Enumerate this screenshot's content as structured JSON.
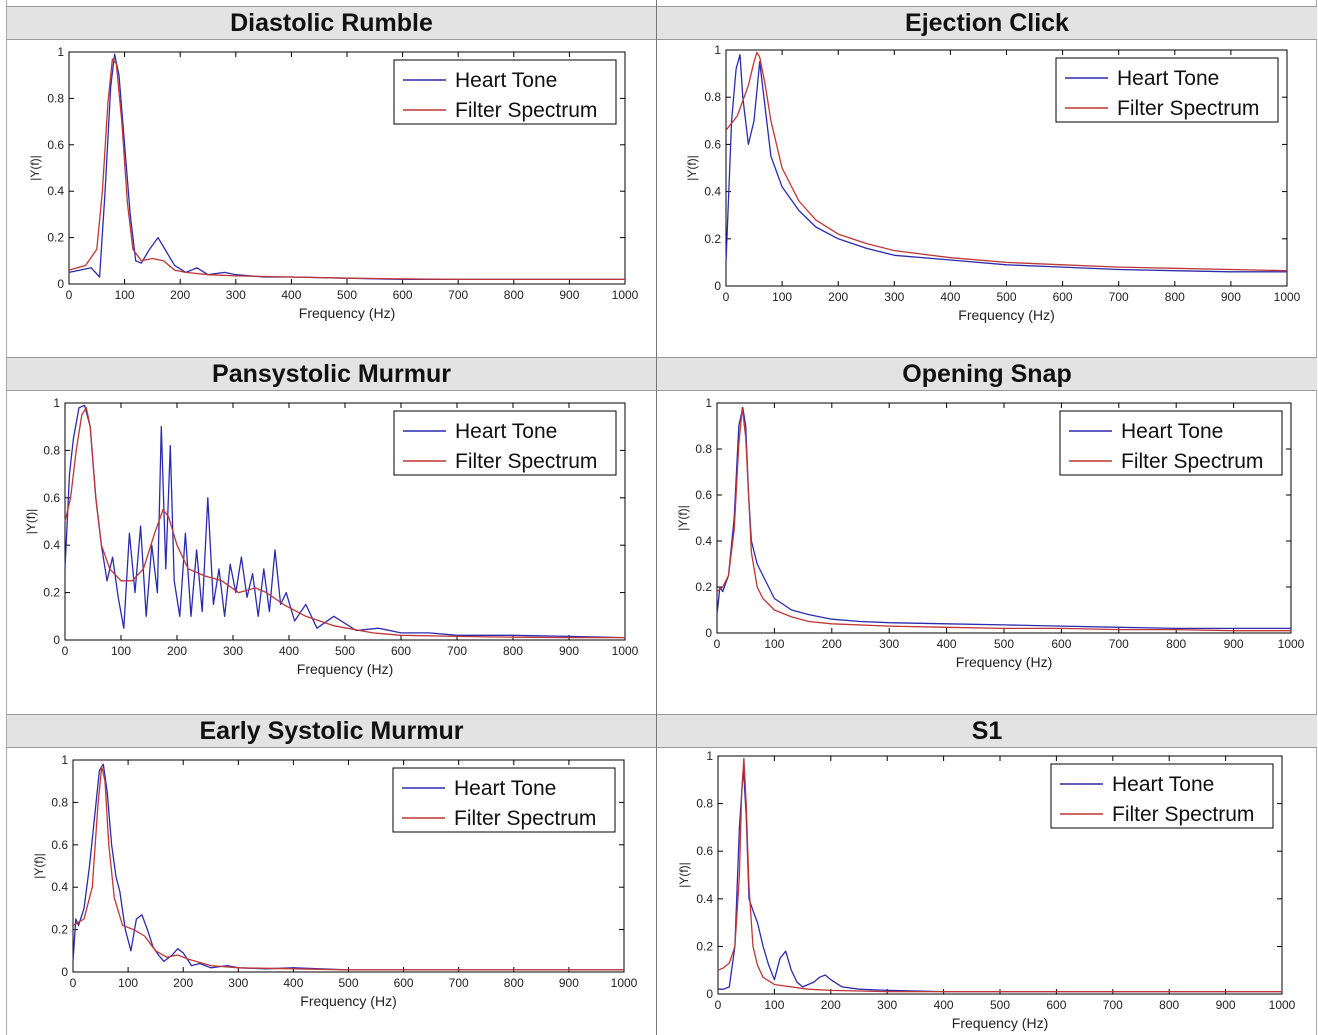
{
  "colors": {
    "heart_tone": "#2b2bb0",
    "filter_spectrum": "#c03535",
    "header_bg": "#e3e3e3"
  },
  "chart_data": [
    {
      "type": "line",
      "title": "Diastolic Rumble",
      "xlabel": "Frequency (Hz)",
      "ylabel": "|Y(f)|",
      "xlim": [
        0,
        1000
      ],
      "ylim": [
        0,
        1
      ],
      "xticks": [
        "0",
        "100",
        "200",
        "300",
        "400",
        "500",
        "600",
        "700",
        "800",
        "900",
        "1000"
      ],
      "yticks": [
        "0",
        "0.2",
        "0.4",
        "0.6",
        "0.8",
        "1"
      ],
      "legend_position": "top-right",
      "series": [
        {
          "name": "Heart Tone",
          "x": [
            0,
            20,
            40,
            55,
            65,
            75,
            82,
            90,
            100,
            110,
            120,
            130,
            145,
            160,
            175,
            190,
            210,
            230,
            250,
            280,
            300,
            350,
            400,
            500,
            600,
            700,
            800,
            900,
            1000
          ],
          "y": [
            0.05,
            0.06,
            0.07,
            0.03,
            0.4,
            0.85,
            0.99,
            0.9,
            0.6,
            0.3,
            0.1,
            0.09,
            0.15,
            0.2,
            0.14,
            0.08,
            0.05,
            0.07,
            0.04,
            0.05,
            0.04,
            0.03,
            0.03,
            0.025,
            0.02,
            0.02,
            0.02,
            0.02,
            0.02
          ]
        },
        {
          "name": "Filter Spectrum",
          "x": [
            0,
            30,
            50,
            60,
            70,
            78,
            85,
            95,
            105,
            115,
            130,
            150,
            170,
            190,
            210,
            250,
            300,
            400,
            500,
            600,
            700,
            800,
            900,
            1000
          ],
          "y": [
            0.06,
            0.08,
            0.15,
            0.4,
            0.78,
            0.97,
            0.95,
            0.7,
            0.35,
            0.15,
            0.1,
            0.11,
            0.1,
            0.06,
            0.05,
            0.04,
            0.035,
            0.03,
            0.025,
            0.022,
            0.02,
            0.02,
            0.02,
            0.02
          ]
        }
      ]
    },
    {
      "type": "line",
      "title": "Ejection Click",
      "xlabel": "Frequency (Hz)",
      "ylabel": "|Y(f)|",
      "xlim": [
        0,
        1000
      ],
      "ylim": [
        0,
        1
      ],
      "xticks": [
        "0",
        "100",
        "200",
        "300",
        "400",
        "500",
        "600",
        "700",
        "800",
        "900",
        "1000"
      ],
      "yticks": [
        "0",
        "0.2",
        "0.4",
        "0.6",
        "0.8",
        "1"
      ],
      "legend_position": "top-right",
      "series": [
        {
          "name": "Heart Tone",
          "x": [
            0,
            5,
            10,
            18,
            25,
            30,
            40,
            50,
            60,
            70,
            80,
            100,
            130,
            160,
            200,
            250,
            300,
            400,
            500,
            600,
            700,
            800,
            900,
            1000
          ],
          "y": [
            0.1,
            0.4,
            0.7,
            0.92,
            0.98,
            0.8,
            0.6,
            0.7,
            0.95,
            0.75,
            0.55,
            0.42,
            0.32,
            0.25,
            0.2,
            0.16,
            0.13,
            0.11,
            0.09,
            0.08,
            0.07,
            0.065,
            0.06,
            0.06
          ]
        },
        {
          "name": "Filter Spectrum",
          "x": [
            0,
            20,
            40,
            50,
            55,
            60,
            70,
            80,
            100,
            130,
            160,
            200,
            250,
            300,
            400,
            500,
            600,
            700,
            800,
            900,
            1000
          ],
          "y": [
            0.66,
            0.72,
            0.85,
            0.95,
            0.99,
            0.97,
            0.85,
            0.7,
            0.5,
            0.36,
            0.28,
            0.22,
            0.18,
            0.15,
            0.12,
            0.1,
            0.09,
            0.08,
            0.075,
            0.07,
            0.065
          ]
        }
      ]
    },
    {
      "type": "line",
      "title": "Pansystolic Murmur",
      "xlabel": "Frequency (Hz)",
      "ylabel": "|Y(f)|",
      "xlim": [
        0,
        1000
      ],
      "ylim": [
        0,
        1
      ],
      "xticks": [
        "0",
        "100",
        "200",
        "300",
        "400",
        "500",
        "600",
        "700",
        "800",
        "900",
        "1000"
      ],
      "yticks": [
        "0",
        "0.2",
        "0.4",
        "0.6",
        "0.8",
        "1"
      ],
      "legend_position": "top-right",
      "series": [
        {
          "name": "Heart Tone",
          "x": [
            0,
            8,
            15,
            25,
            35,
            45,
            55,
            65,
            75,
            85,
            95,
            105,
            115,
            125,
            135,
            145,
            155,
            165,
            172,
            180,
            188,
            195,
            205,
            215,
            225,
            235,
            245,
            255,
            265,
            275,
            285,
            295,
            305,
            315,
            325,
            335,
            345,
            355,
            365,
            375,
            385,
            395,
            410,
            430,
            450,
            480,
            520,
            560,
            600,
            650,
            700,
            800,
            900,
            1000
          ],
          "y": [
            0.3,
            0.7,
            0.85,
            0.98,
            0.99,
            0.9,
            0.6,
            0.4,
            0.25,
            0.35,
            0.18,
            0.05,
            0.45,
            0.2,
            0.48,
            0.1,
            0.4,
            0.2,
            0.9,
            0.3,
            0.82,
            0.25,
            0.1,
            0.45,
            0.1,
            0.38,
            0.12,
            0.6,
            0.15,
            0.3,
            0.1,
            0.32,
            0.2,
            0.35,
            0.18,
            0.28,
            0.1,
            0.3,
            0.12,
            0.38,
            0.15,
            0.2,
            0.08,
            0.15,
            0.05,
            0.1,
            0.04,
            0.05,
            0.03,
            0.03,
            0.02,
            0.02,
            0.015,
            0.01
          ]
        },
        {
          "name": "Filter Spectrum",
          "x": [
            0,
            10,
            20,
            30,
            38,
            45,
            55,
            65,
            80,
            100,
            120,
            140,
            160,
            175,
            185,
            200,
            220,
            250,
            280,
            310,
            340,
            360,
            390,
            430,
            480,
            550,
            600,
            700,
            800,
            900,
            1000
          ],
          "y": [
            0.5,
            0.6,
            0.8,
            0.95,
            0.98,
            0.9,
            0.6,
            0.4,
            0.3,
            0.25,
            0.25,
            0.3,
            0.45,
            0.55,
            0.52,
            0.4,
            0.3,
            0.27,
            0.25,
            0.2,
            0.22,
            0.2,
            0.15,
            0.1,
            0.06,
            0.03,
            0.02,
            0.015,
            0.012,
            0.01,
            0.01
          ]
        }
      ]
    },
    {
      "type": "line",
      "title": "Opening Snap",
      "xlabel": "Frequency (Hz)",
      "ylabel": "|Y(f)|",
      "xlim": [
        0,
        1000
      ],
      "ylim": [
        0,
        1
      ],
      "xticks": [
        "0",
        "100",
        "200",
        "300",
        "400",
        "500",
        "600",
        "700",
        "800",
        "900",
        "1000"
      ],
      "yticks": [
        "0",
        "0.2",
        "0.4",
        "0.6",
        "0.8",
        "1"
      ],
      "legend_position": "top-right",
      "series": [
        {
          "name": "Heart Tone",
          "x": [
            0,
            5,
            10,
            20,
            30,
            38,
            45,
            50,
            55,
            60,
            70,
            80,
            100,
            130,
            160,
            200,
            250,
            300,
            400,
            500,
            600,
            700,
            800,
            900,
            1000
          ],
          "y": [
            0.08,
            0.2,
            0.18,
            0.25,
            0.5,
            0.9,
            0.98,
            0.9,
            0.6,
            0.4,
            0.3,
            0.25,
            0.15,
            0.1,
            0.08,
            0.06,
            0.05,
            0.045,
            0.04,
            0.035,
            0.03,
            0.025,
            0.02,
            0.02,
            0.02
          ]
        },
        {
          "name": "Filter Spectrum",
          "x": [
            0,
            10,
            20,
            30,
            38,
            44,
            50,
            55,
            60,
            70,
            80,
            100,
            130,
            160,
            200,
            300,
            400,
            500,
            600,
            700,
            800,
            900,
            1000
          ],
          "y": [
            0.18,
            0.2,
            0.25,
            0.45,
            0.82,
            0.98,
            0.85,
            0.6,
            0.35,
            0.2,
            0.15,
            0.1,
            0.07,
            0.05,
            0.04,
            0.03,
            0.025,
            0.02,
            0.02,
            0.015,
            0.015,
            0.01,
            0.01
          ]
        }
      ]
    },
    {
      "type": "line",
      "title": "Early Systolic Murmur",
      "xlabel": "Frequency (Hz)",
      "ylabel": "|Y(f)|",
      "xlim": [
        0,
        1000
      ],
      "ylim": [
        0,
        1
      ],
      "xticks": [
        "0",
        "100",
        "200",
        "300",
        "400",
        "500",
        "600",
        "700",
        "800",
        "900",
        "1000"
      ],
      "yticks": [
        "0",
        "0.2",
        "0.4",
        "0.6",
        "0.8",
        "1"
      ],
      "legend_position": "top-right",
      "series": [
        {
          "name": "Heart Tone",
          "x": [
            0,
            5,
            10,
            20,
            30,
            40,
            48,
            55,
            62,
            70,
            78,
            85,
            95,
            105,
            115,
            125,
            135,
            145,
            155,
            165,
            180,
            190,
            200,
            215,
            230,
            250,
            280,
            300,
            350,
            400,
            500,
            600,
            700,
            800,
            900,
            1000
          ],
          "y": [
            0.05,
            0.25,
            0.22,
            0.3,
            0.5,
            0.75,
            0.95,
            0.98,
            0.85,
            0.6,
            0.45,
            0.38,
            0.2,
            0.1,
            0.25,
            0.27,
            0.2,
            0.12,
            0.08,
            0.05,
            0.08,
            0.11,
            0.09,
            0.03,
            0.04,
            0.02,
            0.03,
            0.02,
            0.015,
            0.02,
            0.01,
            0.01,
            0.01,
            0.01,
            0.01,
            0.01
          ]
        },
        {
          "name": "Filter Spectrum",
          "x": [
            0,
            20,
            35,
            45,
            52,
            58,
            65,
            75,
            90,
            110,
            130,
            150,
            170,
            190,
            210,
            250,
            300,
            400,
            500,
            600,
            700,
            800,
            900,
            1000
          ],
          "y": [
            0.22,
            0.25,
            0.4,
            0.78,
            0.97,
            0.9,
            0.6,
            0.35,
            0.22,
            0.2,
            0.17,
            0.1,
            0.07,
            0.08,
            0.06,
            0.03,
            0.02,
            0.015,
            0.01,
            0.01,
            0.01,
            0.01,
            0.01,
            0.01
          ]
        }
      ]
    },
    {
      "type": "line",
      "title": "S1",
      "xlabel": "Frequency (Hz)",
      "ylabel": "|Y(f)|",
      "xlim": [
        0,
        1000
      ],
      "ylim": [
        0,
        1
      ],
      "xticks": [
        "0",
        "100",
        "200",
        "300",
        "400",
        "500",
        "600",
        "700",
        "800",
        "900",
        "1000"
      ],
      "yticks": [
        "0",
        "0.2",
        "0.4",
        "0.6",
        "0.8",
        "1"
      ],
      "legend_position": "top-right",
      "series": [
        {
          "name": "Heart Tone",
          "x": [
            0,
            10,
            20,
            30,
            38,
            45,
            50,
            55,
            62,
            70,
            80,
            90,
            100,
            110,
            120,
            130,
            140,
            150,
            160,
            170,
            180,
            190,
            200,
            220,
            250,
            300,
            400,
            500,
            600,
            700,
            800,
            900,
            1000
          ],
          "y": [
            0.02,
            0.02,
            0.03,
            0.2,
            0.7,
            0.95,
            0.75,
            0.4,
            0.35,
            0.3,
            0.2,
            0.12,
            0.06,
            0.15,
            0.18,
            0.1,
            0.05,
            0.03,
            0.04,
            0.05,
            0.07,
            0.08,
            0.06,
            0.03,
            0.02,
            0.015,
            0.01,
            0.01,
            0.01,
            0.01,
            0.01,
            0.01,
            0.01
          ]
        },
        {
          "name": "Filter Spectrum",
          "x": [
            0,
            10,
            20,
            30,
            38,
            42,
            46,
            50,
            55,
            62,
            70,
            80,
            100,
            130,
            160,
            200,
            300,
            400,
            500,
            600,
            700,
            800,
            900,
            1000
          ],
          "y": [
            0.1,
            0.11,
            0.13,
            0.2,
            0.5,
            0.85,
            0.99,
            0.8,
            0.45,
            0.2,
            0.12,
            0.07,
            0.04,
            0.03,
            0.02,
            0.015,
            0.01,
            0.01,
            0.01,
            0.01,
            0.01,
            0.01,
            0.01,
            0.01
          ]
        }
      ]
    }
  ]
}
